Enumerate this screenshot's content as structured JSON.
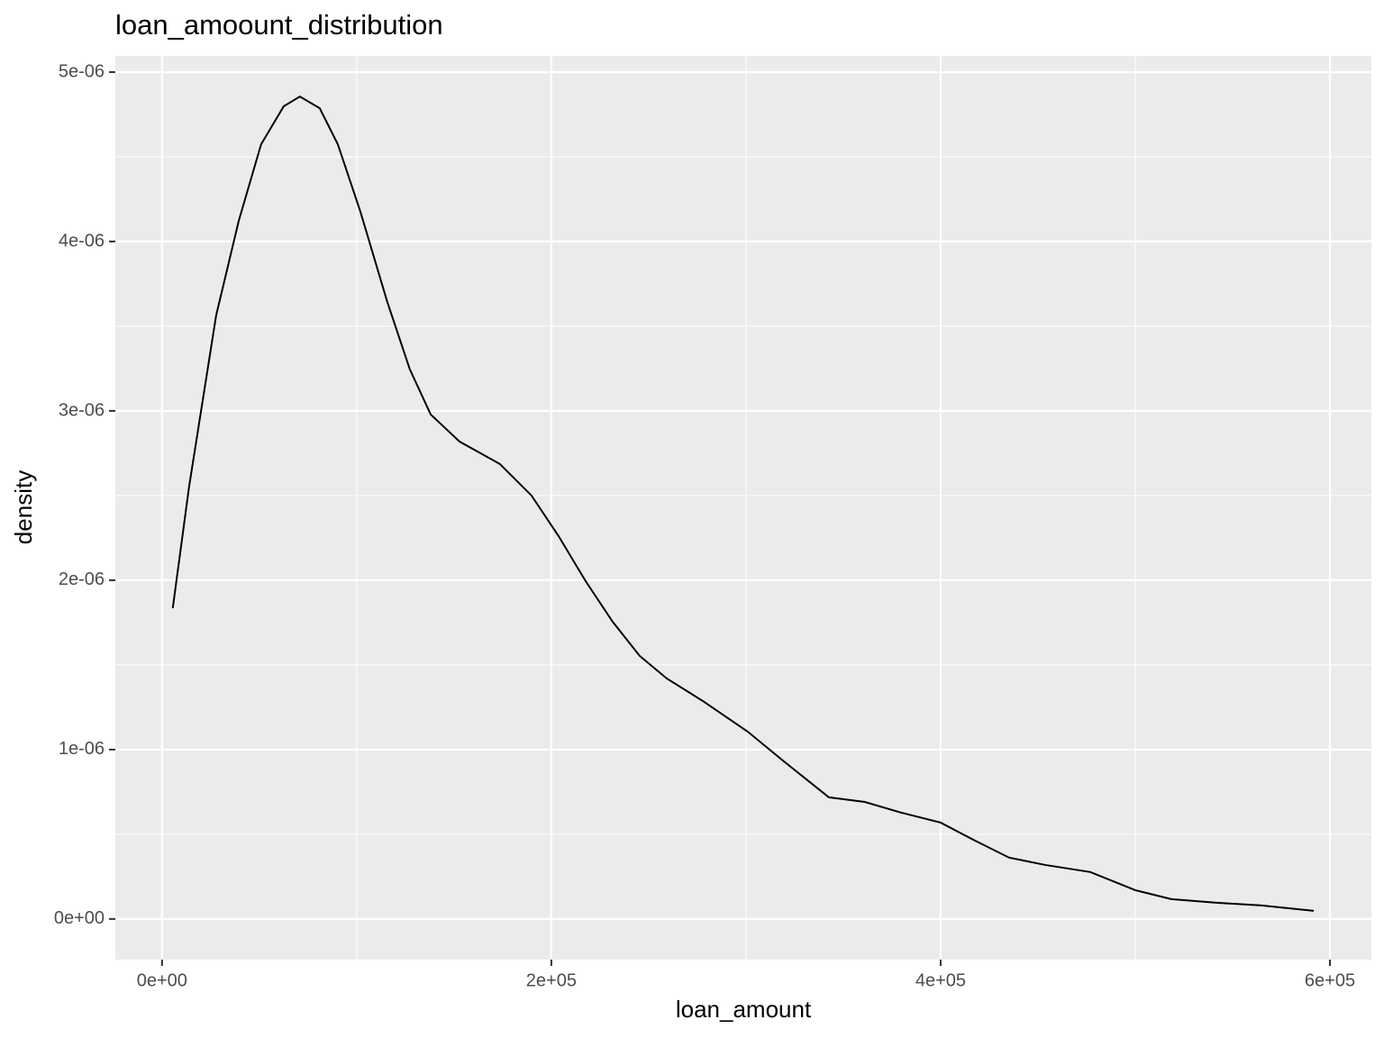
{
  "chart_data": {
    "type": "line",
    "title": "loan_amoount_distribution",
    "x_label": "loan_amount",
    "y_label": "density",
    "x": [
      5500,
      13900,
      27800,
      39400,
      50900,
      62500,
      70800,
      81000,
      90300,
      101900,
      115700,
      127300,
      138000,
      152800,
      173600,
      189800,
      203700,
      217600,
      231500,
      245400,
      259300,
      277800,
      300900,
      319400,
      342600,
      361000,
      379600,
      400000,
      416700,
      435200,
      453700,
      476900,
      500000,
      518500,
      541700,
      564800,
      591700
    ],
    "series": [
      {
        "name": "density",
        "color": "#000000",
        "values": [
          1.835e-06,
          2.553e-06,
          3.564e-06,
          4.122e-06,
          4.574e-06,
          4.798e-06,
          4.856e-06,
          4.787e-06,
          4.574e-06,
          4.176e-06,
          3.644e-06,
          3.245e-06,
          2.979e-06,
          2.819e-06,
          2.686e-06,
          2.5e-06,
          2.261e-06,
          1.995e-06,
          1.755e-06,
          1.553e-06,
          1.42e-06,
          1.287e-06,
          1.106e-06,
          9.31e-07,
          7.18e-07,
          6.91e-07,
          6.28e-07,
          5.69e-07,
          4.68e-07,
          3.62e-07,
          3.19e-07,
          2.77e-07,
          1.7e-07,
          1.17e-07,
          9.6e-08,
          8e-08,
          4.8e-08
        ]
      }
    ],
    "xlim": [
      -24000,
      621300
    ],
    "ylim": [
      -2.4e-07,
      5.096e-06
    ],
    "xticks": [
      {
        "value": 0,
        "label": "0e+00"
      },
      {
        "value": 200000,
        "label": "2e+05"
      },
      {
        "value": 400000,
        "label": "4e+05"
      },
      {
        "value": 600000,
        "label": "6e+05"
      }
    ],
    "yticks": [
      {
        "value": 0,
        "label": "0e+00"
      },
      {
        "value": 1e-06,
        "label": "1e-06"
      },
      {
        "value": 2e-06,
        "label": "2e-06"
      },
      {
        "value": 3e-06,
        "label": "3e-06"
      },
      {
        "value": 4e-06,
        "label": "4e-06"
      },
      {
        "value": 5e-06,
        "label": "5e-06"
      }
    ],
    "x_minor_ticks": [
      100000,
      300000,
      500000
    ],
    "y_minor_ticks": [
      5e-07,
      1.5e-06,
      2.5e-06,
      3.5e-06,
      4.5e-06
    ],
    "grid": true
  }
}
